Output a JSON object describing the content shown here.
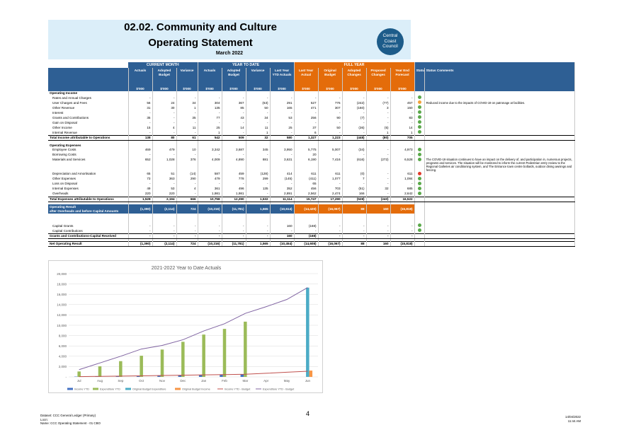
{
  "header": {
    "title_line1": "02.02.  Community and Culture",
    "title_line2": "Operating Statement",
    "period": "March 2022",
    "logo_line1": "Central",
    "logo_line2": "Coast",
    "logo_line3": "Council"
  },
  "table": {
    "group_current": "CURRENT MONTH",
    "group_ytd": "YEAR TO DATE",
    "group_full": "FULL YEAR",
    "columns": [
      "Actuals",
      "Adopted Budget",
      "Variance",
      "Actuals",
      "Adopted Budget",
      "Variance",
      "Last Year YTD Actuals",
      "Last Year Actual",
      "Original Budget",
      "Adopted Changes",
      "Proposed Changes",
      "Year End Forecast",
      "Status",
      "Status Comments"
    ],
    "units": [
      "$'000",
      "$'000",
      "$'000",
      "$'000",
      "$'000",
      "$'000",
      "$'000",
      "$'000",
      "$'000",
      "$'000",
      "$'000",
      "$'000"
    ],
    "rows": [
      {
        "label": "Operating Income",
        "vals": [
          "",
          "",
          "",
          "",
          "",
          "",
          "",
          "",
          "",
          "",
          "",
          ""
        ],
        "status": "",
        "comment": "",
        "style": "bold"
      },
      {
        "label": "Rates and Annual Charges",
        "vals": [
          "-",
          "-",
          "-",
          "-",
          "-",
          "-",
          "-",
          "-",
          "-",
          "-",
          "-",
          "-"
        ],
        "status": "green",
        "comment": "",
        "style": "ind"
      },
      {
        "label": "User Charges and Fees",
        "vals": [
          "56",
          "24",
          "34",
          "304",
          "367",
          "(63)",
          "291",
          "527",
          "776",
          "(242)",
          "(77)",
          "457"
        ],
        "status": "orange",
        "comment": "Reduced income due to the impacts of COVID-19 on patronage at facilities.",
        "style": "ind"
      },
      {
        "label": "Other Revenue",
        "vals": [
          "31",
          "30",
          "1",
          "135",
          "85",
          "50",
          "165",
          "471",
          "307",
          "(160)",
          "3",
          "150"
        ],
        "status": "green",
        "comment": "",
        "style": "ind"
      },
      {
        "label": "Interest",
        "vals": [
          "-",
          "-",
          "-",
          "-",
          "-",
          "-",
          "-",
          "-",
          "-",
          "-",
          "-",
          "-"
        ],
        "status": "green",
        "comment": "",
        "style": "ind"
      },
      {
        "label": "Grants and Contributions",
        "vals": [
          "35",
          "-",
          "35",
          "77",
          "43",
          "34",
          "53",
          "256",
          "90",
          "(7)",
          "-",
          "83"
        ],
        "status": "green",
        "comment": "",
        "style": "ind"
      },
      {
        "label": "Gain on Disposal",
        "vals": [
          "-",
          "-",
          "-",
          "-",
          "-",
          "-",
          "-",
          "-",
          "-",
          "-",
          "-",
          "-"
        ],
        "status": "green",
        "comment": "",
        "style": "ind"
      },
      {
        "label": "Other Income",
        "vals": [
          "15",
          "4",
          "11",
          "25",
          "14",
          "11",
          "25",
          "37",
          "50",
          "(36)",
          "(5)",
          "14"
        ],
        "status": "green",
        "comment": "",
        "style": "ind"
      },
      {
        "label": "Internal Revenue",
        "vals": [
          "-",
          "-",
          "-",
          "1",
          "-",
          "1",
          "-",
          "6",
          "-",
          "-",
          "1",
          "1"
        ],
        "status": "green",
        "comment": "",
        "style": "ind"
      },
      {
        "label": "Total Income attributable to Operations",
        "vals": [
          "138",
          "80",
          "61",
          "542",
          "509",
          "32",
          "580",
          "1,327",
          "1,223",
          "(448)",
          "(80)",
          "705"
        ],
        "status": "",
        "comment": "",
        "style": "tot"
      },
      {
        "label": "",
        "vals": [
          "",
          "",
          "",
          "",
          "",
          "",
          "",
          "",
          "",
          "",
          "",
          ""
        ],
        "status": "",
        "comment": "",
        "style": "gap"
      },
      {
        "label": "Operating Expenses",
        "vals": [
          "",
          "",
          "",
          "",
          "",
          "",
          "",
          "",
          "",
          "",
          "",
          ""
        ],
        "status": "",
        "comment": "",
        "style": "bold"
      },
      {
        "label": "Employee Costs",
        "vals": [
          "469",
          "479",
          "10",
          "3,342",
          "3,687",
          "345",
          "3,950",
          "5,775",
          "5,007",
          "(34)",
          "-",
          "4,973"
        ],
        "status": "green",
        "comment": "",
        "style": "ind"
      },
      {
        "label": "Borrowing Costs",
        "vals": [
          "-",
          "-",
          "-",
          "-",
          "-",
          "-",
          "-",
          "20",
          "-",
          "-",
          "-",
          "-"
        ],
        "status": "green",
        "comment": "",
        "style": "ind"
      },
      {
        "label": "Materials and Services",
        "vals": [
          "652",
          "1,028",
          "376",
          "4,009",
          "4,890",
          "881",
          "3,631",
          "6,190",
          "7,416",
          "(616)",
          "(272)",
          "6,528"
        ],
        "status": "green",
        "comment": "The COVID-19 situation continues to have an impact on the delivery of, and participation in, numerous projects, programs and services. The situation will be monitored to inform the current Pedestrian entry review to the Regional Galleries air conditioning system, and The Entrance town centre bollards, outdoor dining awnings and fencing.",
        "style": "ind"
      },
      {
        "label": "Depreciation and Amortisation",
        "vals": [
          "65",
          "51",
          "(14)",
          "587",
          "459",
          "(128)",
          "414",
          "611",
          "611",
          "(0)",
          "-",
          "611"
        ],
        "status": "red",
        "comment": "",
        "style": "ind"
      },
      {
        "label": "Other Expenses",
        "vals": [
          "73",
          "363",
          "290",
          "479",
          "778",
          "299",
          "(145)",
          "(411)",
          "1,077",
          "7",
          "-",
          "1,084"
        ],
        "status": "green",
        "comment": "",
        "style": "ind"
      },
      {
        "label": "Loss on Disposal",
        "vals": [
          "-",
          "-",
          "-",
          "-",
          "-",
          "-",
          "-",
          "65",
          "-",
          "-",
          "-",
          "-"
        ],
        "status": "green",
        "comment": "",
        "style": "ind"
      },
      {
        "label": "Internal Expenses",
        "vals": [
          "49",
          "53",
          "4",
          "361",
          "496",
          "135",
          "352",
          "456",
          "703",
          "(51)",
          "32",
          "685"
        ],
        "status": "green",
        "comment": "",
        "style": "ind"
      },
      {
        "label": "Overheads",
        "vals": [
          "220",
          "220",
          "-",
          "1,981",
          "1,981",
          "-",
          "2,891",
          "2,562",
          "2,474",
          "166",
          "-",
          "2,642"
        ],
        "status": "green",
        "comment": "",
        "style": "ind"
      },
      {
        "label": "Total Expenses attributable to Operations",
        "vals": [
          "1,528",
          "2,194",
          "666",
          "10,758",
          "12,290",
          "1,532",
          "11,114",
          "15,747",
          "17,290",
          "(528)",
          "(240)",
          "16,522"
        ],
        "status": "",
        "comment": "",
        "style": "tot"
      },
      {
        "label": "",
        "vals": [
          "",
          "",
          "",
          "",
          "",
          "",
          "",
          "",
          "",
          "",
          "",
          ""
        ],
        "status": "",
        "comment": "",
        "style": "gap"
      }
    ],
    "op_result": {
      "label1": "Operating Result",
      "label2": "after Overheads and before Capital Amounts",
      "vals": [
        "(1,390)",
        "(2,114)",
        "724",
        "(10,216)",
        "(11,781)",
        "1,565",
        "(10,614)",
        "(14,420)",
        "(16,067)",
        "88",
        "160",
        "(15,818)"
      ]
    },
    "capital_rows": [
      {
        "label": "Capital Grants",
        "vals": [
          "-",
          "-",
          "-",
          "-",
          "-",
          "-",
          "160",
          "(168)",
          "-",
          "-",
          "-",
          "-"
        ],
        "status": "green",
        "style": "ind"
      },
      {
        "label": "Capital Contributions",
        "vals": [
          "-",
          "-",
          "-",
          "-",
          "-",
          "-",
          "-",
          "-",
          "-",
          "-",
          "-",
          "-"
        ],
        "status": "green",
        "style": "ind"
      },
      {
        "label": "Grants and Contributions-Capital Received",
        "vals": [
          "-",
          "-",
          "-",
          "-",
          "-",
          "-",
          "160",
          "(168)",
          "-",
          "-",
          "-",
          "-"
        ],
        "status": "",
        "style": "tot"
      },
      {
        "label": "",
        "vals": [
          "",
          "",
          "",
          "",
          "",
          "",
          "",
          "",
          "",
          "",
          "",
          ""
        ],
        "status": "",
        "style": "gap"
      },
      {
        "label": "Net Operating Result",
        "vals": [
          "(1,390)",
          "(2,114)",
          "724",
          "(10,216)",
          "(11,781)",
          "1,565",
          "(10,454)",
          "(14,608)",
          "(16,067)",
          "88",
          "160",
          "(15,818)"
        ],
        "status": "",
        "style": "tot"
      }
    ]
  },
  "chart_data": {
    "type": "bar",
    "title": "2021-2022 Year to Date Actuals",
    "categories": [
      "Jul",
      "Aug",
      "Sep",
      "Oct",
      "Nov",
      "Dec",
      "Jan",
      "Feb",
      "Mar",
      "Apr",
      "May",
      "Jun"
    ],
    "ylim": [
      0,
      20000
    ],
    "yticks": [
      "-",
      "2,000",
      "4,000",
      "6,000",
      "8,000",
      "10,000",
      "12,000",
      "14,000",
      "16,000",
      "18,000",
      "20,000"
    ],
    "bar_series": [
      {
        "name": "Income YTD",
        "color": "#4472c4",
        "values": [
          60,
          100,
          150,
          200,
          260,
          300,
          380,
          460,
          540,
          null,
          null,
          null
        ]
      },
      {
        "name": "Expenditure YTD",
        "color": "#9bbb59",
        "values": [
          1050,
          2050,
          3050,
          4100,
          5300,
          6800,
          8200,
          9300,
          10700,
          null,
          null,
          null
        ]
      },
      {
        "name": "Original Budget Expenditure",
        "color": "#4bacc6",
        "values": [
          null,
          null,
          null,
          null,
          null,
          null,
          null,
          null,
          null,
          null,
          null,
          17290
        ]
      },
      {
        "name": "Original Budget Income",
        "color": "#f79646",
        "values": [
          null,
          null,
          null,
          null,
          null,
          null,
          null,
          null,
          null,
          null,
          null,
          1223
        ]
      }
    ],
    "line_series": [
      {
        "name": "Income YTD - Budget",
        "color": "#c0504d",
        "values": [
          50,
          110,
          160,
          210,
          270,
          330,
          390,
          450,
          510,
          700,
          900,
          1100
        ]
      },
      {
        "name": "Expenditure YTD - Budget",
        "color": "#8064a2",
        "values": [
          1400,
          2700,
          4000,
          5400,
          6100,
          7200,
          8900,
          10300,
          12300,
          13600,
          15000,
          17300
        ]
      }
    ]
  },
  "footer": {
    "left_line1": "Dataset: CCC General Ledger (Primary)",
    "left_line2": "Locn:",
    "left_line3": "Name: CCC Operating Statement - 01 CBO",
    "page_number": "4",
    "right_line1": "14/04/2022",
    "right_line2": "11:44 AM"
  }
}
